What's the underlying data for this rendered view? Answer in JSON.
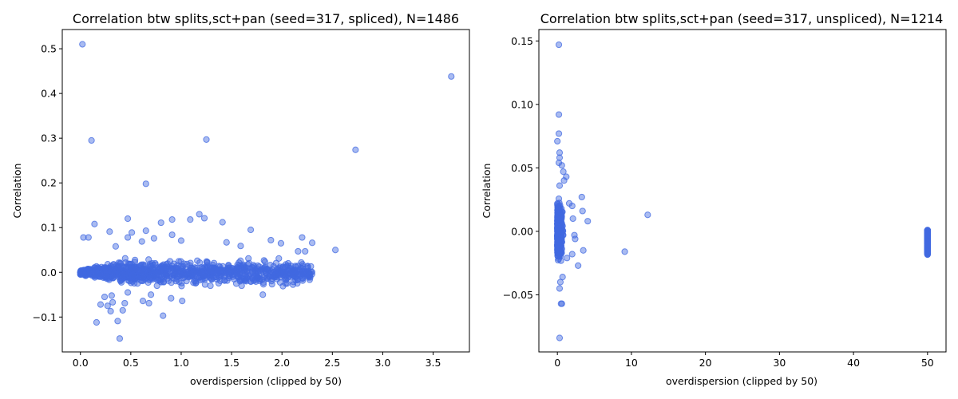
{
  "chart_data": [
    {
      "type": "scatter",
      "title": "Correlation btw splits,sct+pan (seed=317, spliced), N=1486",
      "xlabel": "overdispersion (clipped by 50)",
      "ylabel": "Correlation",
      "xlim": [
        -0.18,
        3.86
      ],
      "ylim": [
        -0.178,
        0.543
      ],
      "xticks": [
        0.0,
        0.5,
        1.0,
        1.5,
        2.0,
        2.5,
        3.0,
        3.5
      ],
      "xtick_labels": [
        "0.0",
        "0.5",
        "1.0",
        "1.5",
        "2.0",
        "2.5",
        "3.0",
        "3.5"
      ],
      "yticks": [
        -0.1,
        0.0,
        0.1,
        0.2,
        0.3,
        0.4,
        0.5
      ],
      "ytick_labels": [
        "−0.1",
        "0.0",
        "0.1",
        "0.2",
        "0.3",
        "0.4",
        "0.5"
      ],
      "color": "#4169e1",
      "points": [
        [
          0.02,
          0.51
        ],
        [
          3.68,
          0.438
        ],
        [
          0.11,
          0.295
        ],
        [
          1.25,
          0.297
        ],
        [
          2.73,
          0.274
        ],
        [
          0.65,
          0.198
        ],
        [
          1.18,
          0.13
        ],
        [
          0.47,
          0.12
        ],
        [
          1.09,
          0.118
        ],
        [
          0.91,
          0.118
        ],
        [
          1.23,
          0.121
        ],
        [
          0.14,
          0.108
        ],
        [
          0.8,
          0.111
        ],
        [
          1.41,
          0.112
        ],
        [
          0.65,
          0.093
        ],
        [
          1.69,
          0.095
        ],
        [
          0.29,
          0.091
        ],
        [
          0.51,
          0.089
        ],
        [
          2.2,
          0.078
        ],
        [
          0.91,
          0.084
        ],
        [
          0.47,
          0.078
        ],
        [
          0.03,
          0.078
        ],
        [
          0.73,
          0.076
        ],
        [
          1.0,
          0.071
        ],
        [
          1.45,
          0.067
        ],
        [
          1.89,
          0.072
        ],
        [
          2.3,
          0.066
        ],
        [
          0.08,
          0.078
        ],
        [
          1.99,
          0.065
        ],
        [
          1.59,
          0.059
        ],
        [
          2.53,
          0.05
        ],
        [
          2.16,
          0.047
        ],
        [
          2.23,
          0.047
        ],
        [
          0.35,
          0.058
        ],
        [
          0.61,
          0.069
        ],
        [
          0.37,
          -0.109
        ],
        [
          0.16,
          -0.112
        ],
        [
          0.39,
          -0.148
        ],
        [
          0.82,
          -0.097
        ],
        [
          0.2,
          -0.072
        ],
        [
          0.27,
          -0.075
        ],
        [
          0.3,
          -0.087
        ],
        [
          0.42,
          -0.085
        ],
        [
          0.44,
          -0.069
        ],
        [
          0.62,
          -0.064
        ],
        [
          0.68,
          -0.069
        ],
        [
          1.01,
          -0.064
        ],
        [
          0.9,
          -0.058
        ],
        [
          0.32,
          -0.067
        ],
        [
          1.81,
          -0.05
        ],
        [
          0.24,
          -0.055
        ],
        [
          2.01,
          -0.031
        ],
        [
          2.05,
          -0.025
        ],
        [
          1.6,
          -0.03
        ],
        [
          1.29,
          -0.03
        ],
        [
          0.31,
          -0.052
        ],
        [
          0.47,
          -0.045
        ],
        [
          0.7,
          -0.05
        ],
        [
          0.76,
          -0.03
        ]
      ],
      "dense_cluster": {
        "description": "points concentrated near y=0 for x in 0 to 2.3",
        "x_range": [
          0.0,
          2.3
        ],
        "y_spread": 0.045
      }
    },
    {
      "type": "scatter",
      "title": "Correlation btw splits,sct+pan (seed=317, unspliced), N=1214",
      "xlabel": "overdispersion (clipped by 50)",
      "ylabel": "Correlation",
      "xlim": [
        -2.5,
        52.5
      ],
      "ylim": [
        -0.095,
        0.159
      ],
      "xticks": [
        0,
        10,
        20,
        30,
        40,
        50
      ],
      "xtick_labels": [
        "0",
        "10",
        "20",
        "30",
        "40",
        "50"
      ],
      "yticks": [
        -0.05,
        0.0,
        0.05,
        0.1,
        0.15
      ],
      "ytick_labels": [
        "−0.05",
        "0.00",
        "0.05",
        "0.10",
        "0.15"
      ],
      "color": "#4169e1",
      "points": [
        [
          0.2,
          0.147
        ],
        [
          0.2,
          0.092
        ],
        [
          0.2,
          0.077
        ],
        [
          0.0,
          0.071
        ],
        [
          0.3,
          0.062
        ],
        [
          0.3,
          0.058
        ],
        [
          0.2,
          0.054
        ],
        [
          0.6,
          0.052
        ],
        [
          0.8,
          0.047
        ],
        [
          1.2,
          0.043
        ],
        [
          0.9,
          0.04
        ],
        [
          0.3,
          0.036
        ],
        [
          3.3,
          0.027
        ],
        [
          2.0,
          0.02
        ],
        [
          4.1,
          0.008
        ],
        [
          3.4,
          0.016
        ],
        [
          12.2,
          0.013
        ],
        [
          9.1,
          -0.016
        ],
        [
          2.8,
          -0.027
        ],
        [
          3.5,
          -0.015
        ],
        [
          2.0,
          -0.018
        ],
        [
          0.3,
          -0.045
        ],
        [
          0.5,
          -0.057
        ],
        [
          0.6,
          -0.057
        ],
        [
          0.3,
          -0.084
        ],
        [
          0.4,
          -0.04
        ],
        [
          0.7,
          -0.036
        ],
        [
          1.3,
          -0.021
        ],
        [
          2.1,
          0.01
        ],
        [
          1.6,
          0.022
        ],
        [
          2.3,
          -0.003
        ],
        [
          2.4,
          -0.006
        ]
      ],
      "clipped_cluster": {
        "x": 50,
        "y_range": [
          -0.019,
          0.001
        ]
      },
      "dense_cluster": {
        "x_range": [
          0.0,
          1.8
        ],
        "y_range": [
          -0.035,
          0.035
        ]
      }
    }
  ]
}
